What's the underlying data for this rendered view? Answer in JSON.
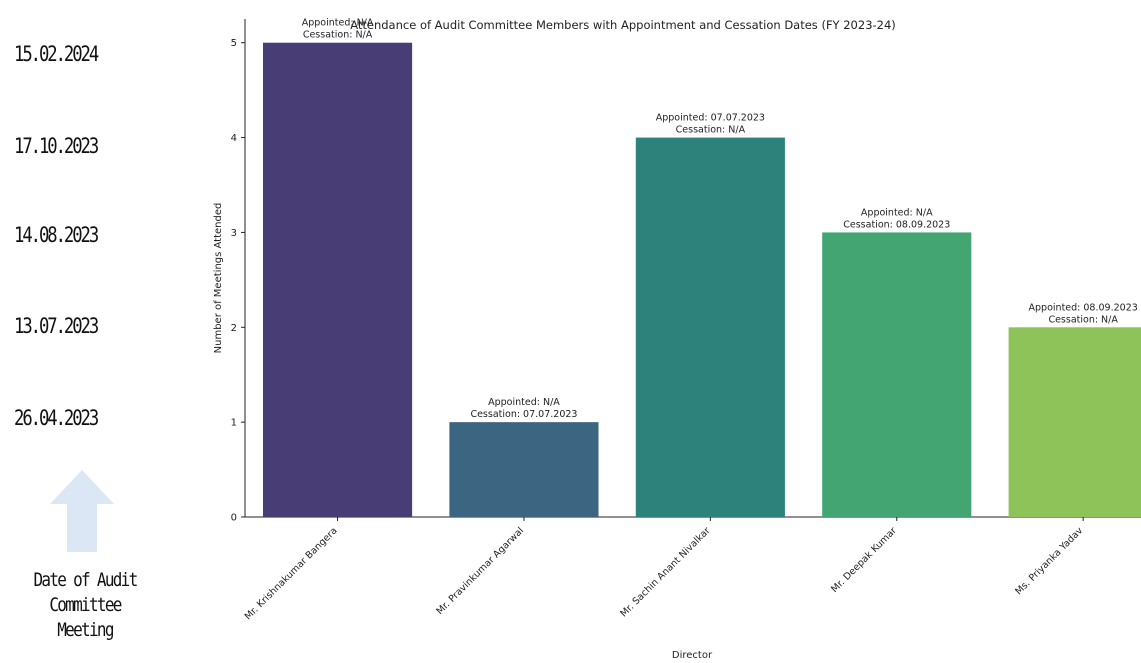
{
  "meeting_dates": [
    "15.02.2024",
    "17.10.2023",
    "14.08.2023",
    "13.07.2023",
    "26.04.2023"
  ],
  "caption": {
    "line1": "Date of Audit",
    "line2": "Committee",
    "line3": "Meeting"
  },
  "colors": {
    "arrow": "#dbe7f4",
    "bars": [
      "#483d74",
      "#3c6582",
      "#2d827c",
      "#43a571",
      "#8dc358"
    ]
  },
  "chart_data": {
    "type": "bar",
    "title": "Attendance of Audit Committee Members with Appointment and Cessation Dates (FY 2023-24)",
    "xlabel": "Director",
    "ylabel": "Number of Meetings Attended",
    "categories": [
      "Mr. Krishnakumar Bangera",
      "Mr. Pravinkumar Agarwal",
      "Mr. Sachin Anant Nivalkar",
      "Mr. Deepak Kumar",
      "Ms. Priyanka Yadav"
    ],
    "values": [
      5,
      1,
      4,
      3,
      2
    ],
    "ylim": [
      0,
      5.25
    ],
    "yticks": [
      0,
      1,
      2,
      3,
      4,
      5
    ],
    "grid": false,
    "annotations": [
      {
        "appointed": "Appointed: N/A",
        "cessation": "Cessation: N/A"
      },
      {
        "appointed": "Appointed: N/A",
        "cessation": "Cessation: 07.07.2023"
      },
      {
        "appointed": "Appointed: 07.07.2023",
        "cessation": "Cessation: N/A"
      },
      {
        "appointed": "Appointed: N/A",
        "cessation": "Cessation: 08.09.2023"
      },
      {
        "appointed": "Appointed: 08.09.2023",
        "cessation": "Cessation: N/A"
      }
    ]
  }
}
